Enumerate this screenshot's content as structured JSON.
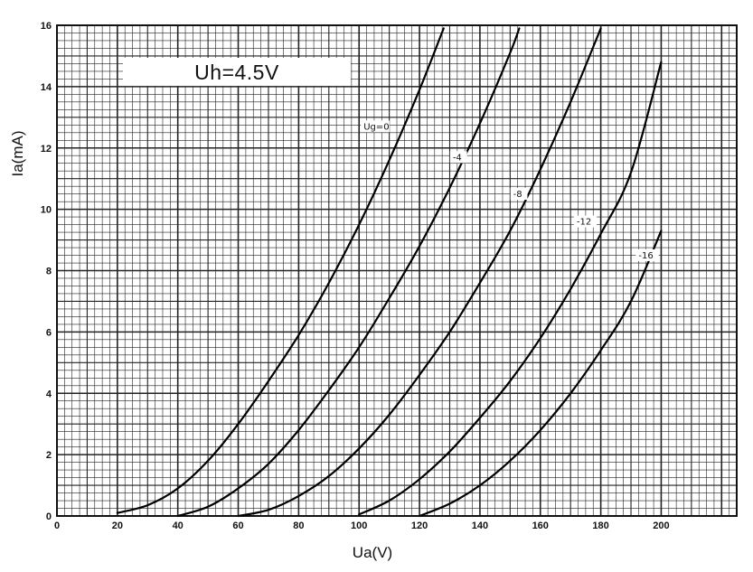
{
  "chart_data": {
    "type": "line",
    "title": "Uh=4.5V",
    "xlabel": "Ua(V)",
    "ylabel": "Ia(mA)",
    "xlim": [
      0,
      225
    ],
    "ylim": [
      0,
      16
    ],
    "xticks": [
      0,
      20,
      40,
      60,
      80,
      100,
      120,
      140,
      160,
      180,
      200
    ],
    "yticks": [
      0,
      2,
      4,
      6,
      8,
      10,
      12,
      14,
      16
    ],
    "grid": true,
    "series": [
      {
        "name": "Ug=0",
        "x": [
          20,
          30,
          40,
          50,
          60,
          70,
          80,
          90,
          100,
          110,
          120,
          128
        ],
        "y": [
          0.1,
          0.35,
          0.9,
          1.8,
          3.0,
          4.4,
          5.9,
          7.6,
          9.5,
          11.6,
          13.9,
          15.9
        ]
      },
      {
        "name": "-4",
        "x": [
          40,
          50,
          60,
          70,
          80,
          90,
          100,
          110,
          120,
          130,
          140,
          150,
          153
        ],
        "y": [
          0.0,
          0.3,
          0.9,
          1.7,
          2.8,
          4.1,
          5.5,
          7.1,
          8.8,
          10.7,
          12.8,
          15.1,
          15.9
        ]
      },
      {
        "name": "-8",
        "x": [
          60,
          70,
          80,
          90,
          100,
          110,
          120,
          130,
          140,
          150,
          160,
          170,
          180
        ],
        "y": [
          0.0,
          0.2,
          0.65,
          1.3,
          2.2,
          3.3,
          4.6,
          6.0,
          7.6,
          9.3,
          11.3,
          13.5,
          15.9
        ]
      },
      {
        "name": "-12",
        "x": [
          100,
          110,
          120,
          130,
          140,
          150,
          160,
          170,
          180,
          190,
          200
        ],
        "y": [
          0.05,
          0.5,
          1.2,
          2.1,
          3.2,
          4.4,
          5.8,
          7.4,
          9.2,
          11.2,
          14.8
        ]
      },
      {
        "name": "-16",
        "x": [
          120,
          130,
          140,
          150,
          160,
          170,
          180,
          190,
          200
        ],
        "y": [
          0.0,
          0.4,
          1.0,
          1.8,
          2.8,
          4.0,
          5.4,
          7.0,
          9.3
        ]
      }
    ],
    "curve_labels": [
      "Ug=0",
      "-4",
      "-8",
      "-12",
      "-16"
    ]
  }
}
